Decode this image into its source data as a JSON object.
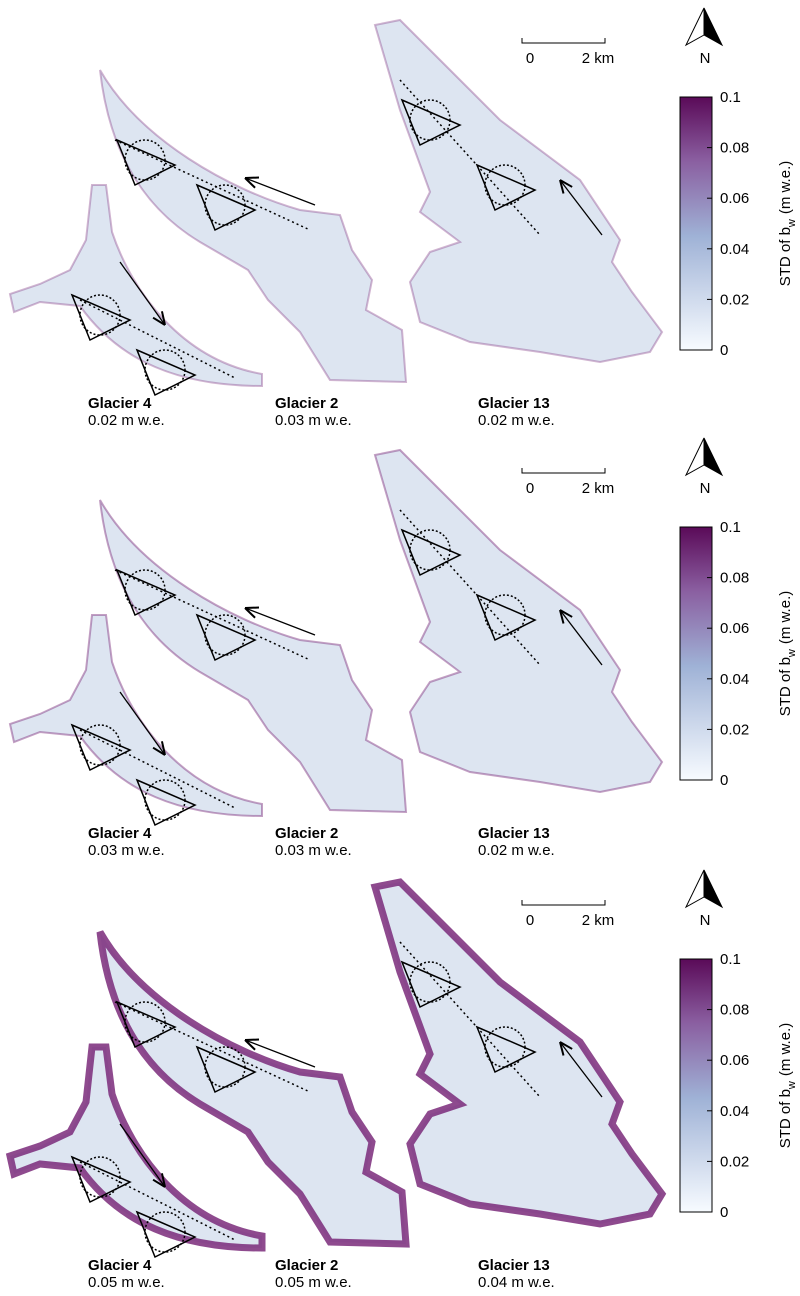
{
  "panels": [
    {
      "scale_bar": {
        "start": "0",
        "end": "2 km"
      },
      "north": "N",
      "colorbar": {
        "label": {
          "text": "STD of b",
          "subscript": "w",
          "unit": "(m w.e.)"
        },
        "ylim": [
          0,
          0.1
        ],
        "ticks": [
          0,
          0.02,
          0.04,
          0.06,
          0.08,
          0.1
        ]
      },
      "glaciers": [
        {
          "name": "Glacier 4",
          "value": "0.02 m w.e."
        },
        {
          "name": "Glacier 2",
          "value": "0.03 m w.e."
        },
        {
          "name": "Glacier 13",
          "value": "0.02 m w.e."
        }
      ]
    },
    {
      "scale_bar": {
        "start": "0",
        "end": "2 km"
      },
      "north": "N",
      "colorbar": {
        "label": {
          "text": "STD of b",
          "subscript": "w",
          "unit": "(m w.e.)"
        },
        "ylim": [
          0,
          0.1
        ],
        "ticks": [
          0,
          0.02,
          0.04,
          0.06,
          0.08,
          0.1
        ]
      },
      "glaciers": [
        {
          "name": "Glacier 4",
          "value": "0.03 m w.e."
        },
        {
          "name": "Glacier 2",
          "value": "0.03 m w.e."
        },
        {
          "name": "Glacier 13",
          "value": "0.02 m w.e."
        }
      ]
    },
    {
      "scale_bar": {
        "start": "0",
        "end": "2 km"
      },
      "north": "N",
      "colorbar": {
        "label": {
          "text": "STD of b",
          "subscript": "w",
          "unit": "(m w.e.)"
        },
        "ylim": [
          0,
          0.1
        ],
        "ticks": [
          0,
          0.02,
          0.04,
          0.06,
          0.08,
          0.1
        ]
      },
      "glaciers": [
        {
          "name": "Glacier 4",
          "value": "0.05 m w.e."
        },
        {
          "name": "Glacier 2",
          "value": "0.05 m w.e."
        },
        {
          "name": "Glacier 13",
          "value": "0.04 m w.e."
        }
      ]
    }
  ]
}
